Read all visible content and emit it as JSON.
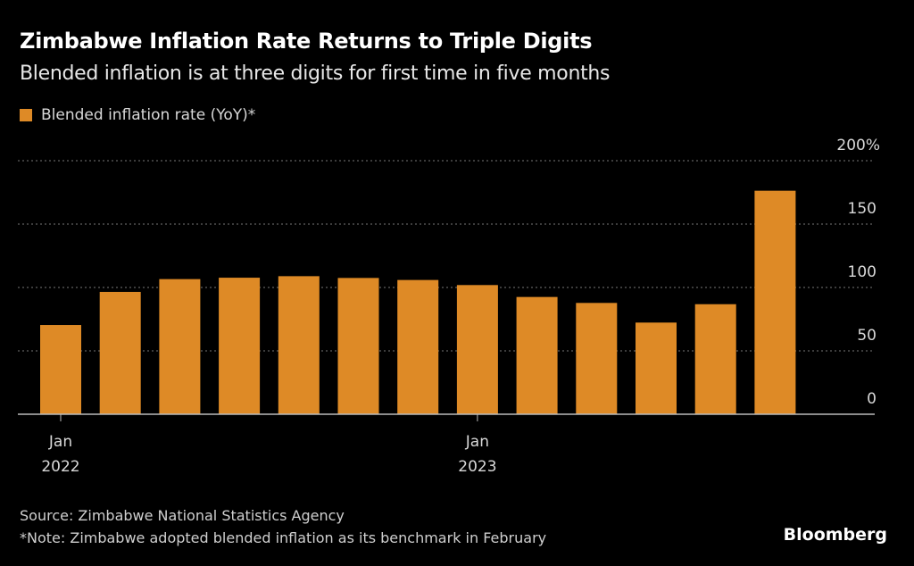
{
  "title": "Zimbabwe Inflation Rate Returns to Triple Digits",
  "subtitle": "Blended inflation is at three digits for first time in five months",
  "legend": {
    "label": "Blended inflation rate (YoY)*",
    "color": "#DE8A26"
  },
  "footer": {
    "source": "Source: Zimbabwe National Statistics Agency",
    "note": "*Note: Zimbabwe adopted blended inflation as its benchmark in February",
    "logo": "Bloomberg"
  },
  "chart_data": {
    "type": "bar",
    "title": "Zimbabwe Inflation Rate Returns to Triple Digits",
    "subtitle": "Blended inflation is at three digits for first time in five months",
    "series": [
      {
        "name": "Blended inflation rate (YoY)*",
        "color": "#DE8A26",
        "values": [
          70.4,
          96.5,
          106.6,
          107.7,
          108.9,
          107.5,
          105.9,
          101.9,
          92.5,
          87.8,
          72.3,
          86.8,
          176.3
        ]
      }
    ],
    "x_ticks": [
      {
        "index": 0,
        "line1": "Jan",
        "line2": "2022"
      },
      {
        "index": 7,
        "line1": "Jan",
        "line2": "2023"
      }
    ],
    "y_ticks": [
      {
        "value": 0,
        "label": "0"
      },
      {
        "value": 50,
        "label": "50"
      },
      {
        "value": 100,
        "label": "100"
      },
      {
        "value": 150,
        "label": "150"
      },
      {
        "value": 200,
        "label": "200%"
      }
    ],
    "ylim": [
      0,
      200
    ],
    "grid": true,
    "y_axis_side": "right",
    "legend_position": "top-left"
  }
}
